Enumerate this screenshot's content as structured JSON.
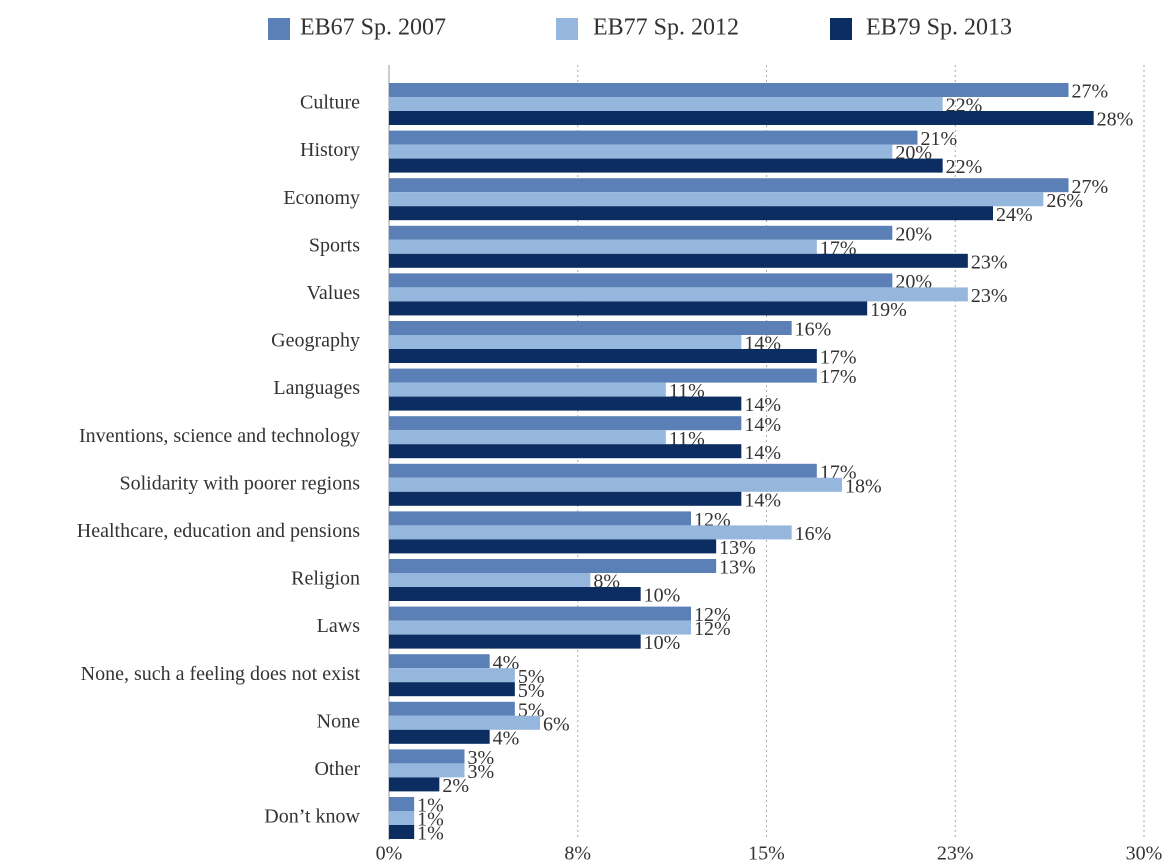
{
  "chart_data": {
    "type": "hbar",
    "categories": [
      "Culture",
      "History",
      "Economy",
      "Sports",
      "Values",
      "Geography",
      "Languages",
      "Inventions, science and technology",
      "Solidarity with poorer regions",
      "Healthcare, education and pensions",
      "Religion",
      "Laws",
      "None, such a feeling does not exist",
      "None",
      "Other",
      "Don’t know"
    ],
    "series": [
      {
        "name": "EB67 Sp. 2007",
        "color": "#5b80b8",
        "values": [
          27,
          21,
          27,
          20,
          20,
          16,
          17,
          14,
          17,
          12,
          13,
          12,
          4,
          5,
          3,
          1
        ],
        "value_labels": [
          "27%",
          "21%",
          "27%",
          "20%",
          "20%",
          "16%",
          "17%",
          "14%",
          "17%",
          "12%",
          "13%",
          "12%",
          "4%",
          "5%",
          "3%",
          "1%"
        ]
      },
      {
        "name": "EB77 Sp. 2012",
        "color": "#95b7dd",
        "values": [
          22,
          20,
          26,
          17,
          23,
          14,
          11,
          11,
          18,
          16,
          8,
          12,
          5,
          6,
          3,
          1
        ],
        "value_labels": [
          "22%",
          "20%",
          "26%",
          "17%",
          "23%",
          "14%",
          "11%",
          "11%",
          "18%",
          "16%",
          "8%",
          "12%",
          "5%",
          "6%",
          "3%",
          "1%"
        ]
      },
      {
        "name": "EB79 Sp. 2013",
        "color": "#0b2d62",
        "values": [
          28,
          22,
          24,
          23,
          19,
          17,
          14,
          14,
          14,
          13,
          10,
          10,
          5,
          4,
          2,
          1
        ],
        "value_labels": [
          "28%",
          "22%",
          "24%",
          "23%",
          "19%",
          "17%",
          "14%",
          "14%",
          "14%",
          "13%",
          "10%",
          "10%",
          "5%",
          "4%",
          "2%",
          "1%"
        ]
      }
    ],
    "xlim": [
      0,
      30
    ],
    "xticks": [
      {
        "value": 0,
        "label": "0%"
      },
      {
        "value": 7.5,
        "label": "8%"
      },
      {
        "value": 15,
        "label": "15%"
      },
      {
        "value": 22.5,
        "label": "23%"
      },
      {
        "value": 30,
        "label": "30%"
      }
    ],
    "grid": true,
    "legend": "top"
  }
}
